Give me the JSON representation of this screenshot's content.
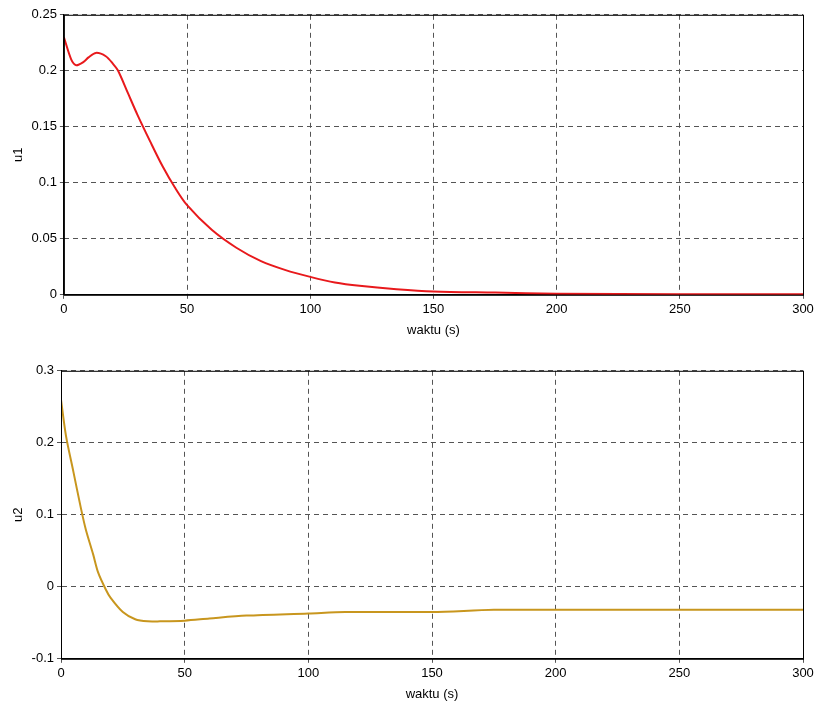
{
  "chart_data": [
    {
      "type": "line",
      "xlabel": "waktu (s)",
      "ylabel": "u1",
      "x": [
        0,
        3,
        5,
        8,
        10,
        13,
        17,
        20,
        22,
        26,
        30,
        35,
        40,
        45,
        50,
        60,
        70,
        80,
        90,
        100,
        110,
        120,
        135,
        150,
        175,
        200,
        250,
        300
      ],
      "values": [
        0.23,
        0.21,
        0.205,
        0.208,
        0.212,
        0.216,
        0.213,
        0.206,
        0.2,
        0.18,
        0.16,
        0.137,
        0.115,
        0.096,
        0.08,
        0.058,
        0.042,
        0.03,
        0.022,
        0.016,
        0.011,
        0.008,
        0.005,
        0.003,
        0.002,
        0.001,
        0.0005,
        0.0005
      ],
      "color": "#e8191c",
      "xlim": [
        0,
        300
      ],
      "xticks": [
        0,
        50,
        100,
        150,
        200,
        250,
        300
      ],
      "ylim": [
        0,
        0.25
      ],
      "yticks": [
        0,
        0.05,
        0.1,
        0.15,
        0.2,
        0.25
      ],
      "grid": true
    },
    {
      "type": "line",
      "xlabel": "waktu (s)",
      "ylabel": "u2",
      "x": [
        0,
        2,
        5,
        8,
        10,
        13,
        15,
        18,
        20,
        25,
        30,
        35,
        40,
        50,
        60,
        75,
        100,
        115,
        150,
        175,
        200,
        250,
        300
      ],
      "values": [
        0.26,
        0.21,
        0.16,
        0.11,
        0.08,
        0.045,
        0.02,
        -0.003,
        -0.015,
        -0.035,
        -0.045,
        -0.048,
        -0.048,
        -0.047,
        -0.044,
        -0.04,
        -0.037,
        -0.035,
        -0.035,
        -0.032,
        -0.032,
        -0.032,
        -0.032
      ],
      "color": "#c8961e",
      "xlim": [
        0,
        300
      ],
      "xticks": [
        0,
        50,
        100,
        150,
        200,
        250,
        300
      ],
      "ylim": [
        -0.1,
        0.3
      ],
      "yticks": [
        -0.1,
        0,
        0.1,
        0.2,
        0.3
      ],
      "grid": true
    }
  ]
}
